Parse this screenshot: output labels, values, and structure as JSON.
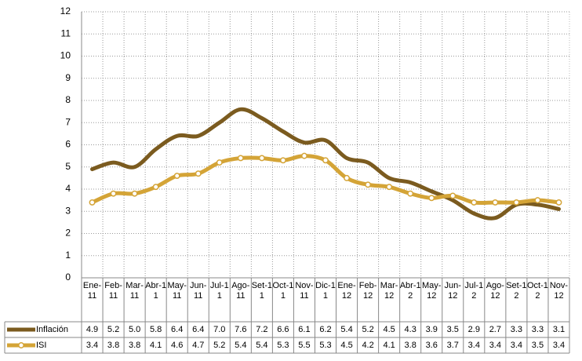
{
  "chart_data": {
    "type": "line",
    "categories": [
      "Ene-11",
      "Feb-11",
      "Mar-11",
      "Abr-11",
      "May-11",
      "Jun-11",
      "Jul-11",
      "Ago-11",
      "Set-11",
      "Oct-11",
      "Nov-11",
      "Dic-11",
      "Ene-12",
      "Feb-12",
      "Mar-12",
      "Abr-12",
      "May-12",
      "Jun-12",
      "Jul-12",
      "Ago-12",
      "Set-12",
      "Oct-12",
      "Nov-12"
    ],
    "series": [
      {
        "name": "Inflación",
        "color": "#7b5b1f",
        "marker": false,
        "values": [
          4.9,
          5.2,
          5.0,
          5.8,
          6.4,
          6.4,
          7.0,
          7.6,
          7.2,
          6.6,
          6.1,
          6.2,
          5.4,
          5.2,
          4.5,
          4.3,
          3.9,
          3.5,
          2.9,
          2.7,
          3.3,
          3.3,
          3.1
        ],
        "value_labels": [
          "4.9",
          "5.2",
          "5.0",
          "5.8",
          "6.4",
          "6.4",
          "7.0",
          "7.6",
          "7.2",
          "6.6",
          "6.1",
          "6.2",
          "5.4",
          "5.2",
          "4.5",
          "4.3",
          "3.9",
          "3.5",
          "2.9",
          "2.7",
          "3.3",
          "3.3",
          "3.1"
        ]
      },
      {
        "name": "ISI",
        "color": "#d4a437",
        "marker": true,
        "values": [
          3.4,
          3.8,
          3.8,
          4.1,
          4.6,
          4.7,
          5.2,
          5.4,
          5.4,
          5.3,
          5.5,
          5.3,
          4.5,
          4.2,
          4.1,
          3.8,
          3.6,
          3.7,
          3.4,
          3.4,
          3.4,
          3.5,
          3.4
        ],
        "value_labels": [
          "3.4",
          "3.8",
          "3.8",
          "4.1",
          "4.6",
          "4.7",
          "5.2",
          "5.4",
          "5.4",
          "5.3",
          "5.5",
          "5.3",
          "4.5",
          "4.2",
          "4.1",
          "3.8",
          "3.6",
          "3.7",
          "3.4",
          "3.4",
          "3.4",
          "3.5",
          "3.4"
        ]
      }
    ],
    "ylim": [
      0,
      12
    ],
    "yticks": [
      0,
      1,
      2,
      3,
      4,
      5,
      6,
      7,
      8,
      9,
      10,
      11,
      12
    ],
    "grid": true
  }
}
